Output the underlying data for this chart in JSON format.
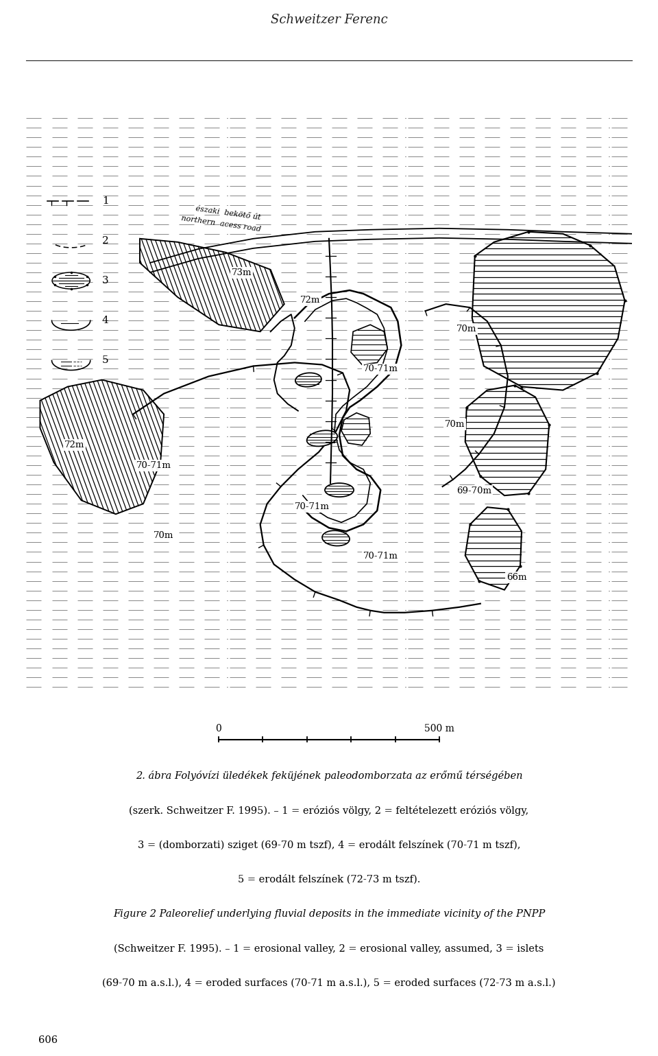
{
  "header_text": "Schweitzer Ferenc",
  "page_number": "606",
  "bg_color": "#ffffff",
  "caption_lines": [
    {
      "text": "2. ábra Folyóvízi üledékek feküjének paleodomborzata az erőmű térségében",
      "italic": true
    },
    {
      "text": "(szerk. Schweitzer F. 1995). – 1 = eróziós völgy, 2 = feltételezett eróziós völgy,",
      "italic": false
    },
    {
      "text": "3 = (domborzati) sziget (69-70 m tszf), 4 = erodált felszínek (70-71 m tszf),",
      "italic": false
    },
    {
      "text": "5 = erodált felszínek (72-73 m tszf).",
      "italic": false
    },
    {
      "text": "Figure 2 Paleorelief underlying fluvial deposits in the immediate vicinity of the PNPP",
      "italic": true
    },
    {
      "text": "(Schweitzer F. 1995). – 1 = erosional valley, 2 = erosional valley, assumed, 3 = islets",
      "italic": false
    },
    {
      "text": "(69-70 m a.s.l.), 4 = eroded surfaces (70-71 m a.s.l.), 5 = eroded surfaces (72-73 m a.s.l.)",
      "italic": false
    }
  ]
}
